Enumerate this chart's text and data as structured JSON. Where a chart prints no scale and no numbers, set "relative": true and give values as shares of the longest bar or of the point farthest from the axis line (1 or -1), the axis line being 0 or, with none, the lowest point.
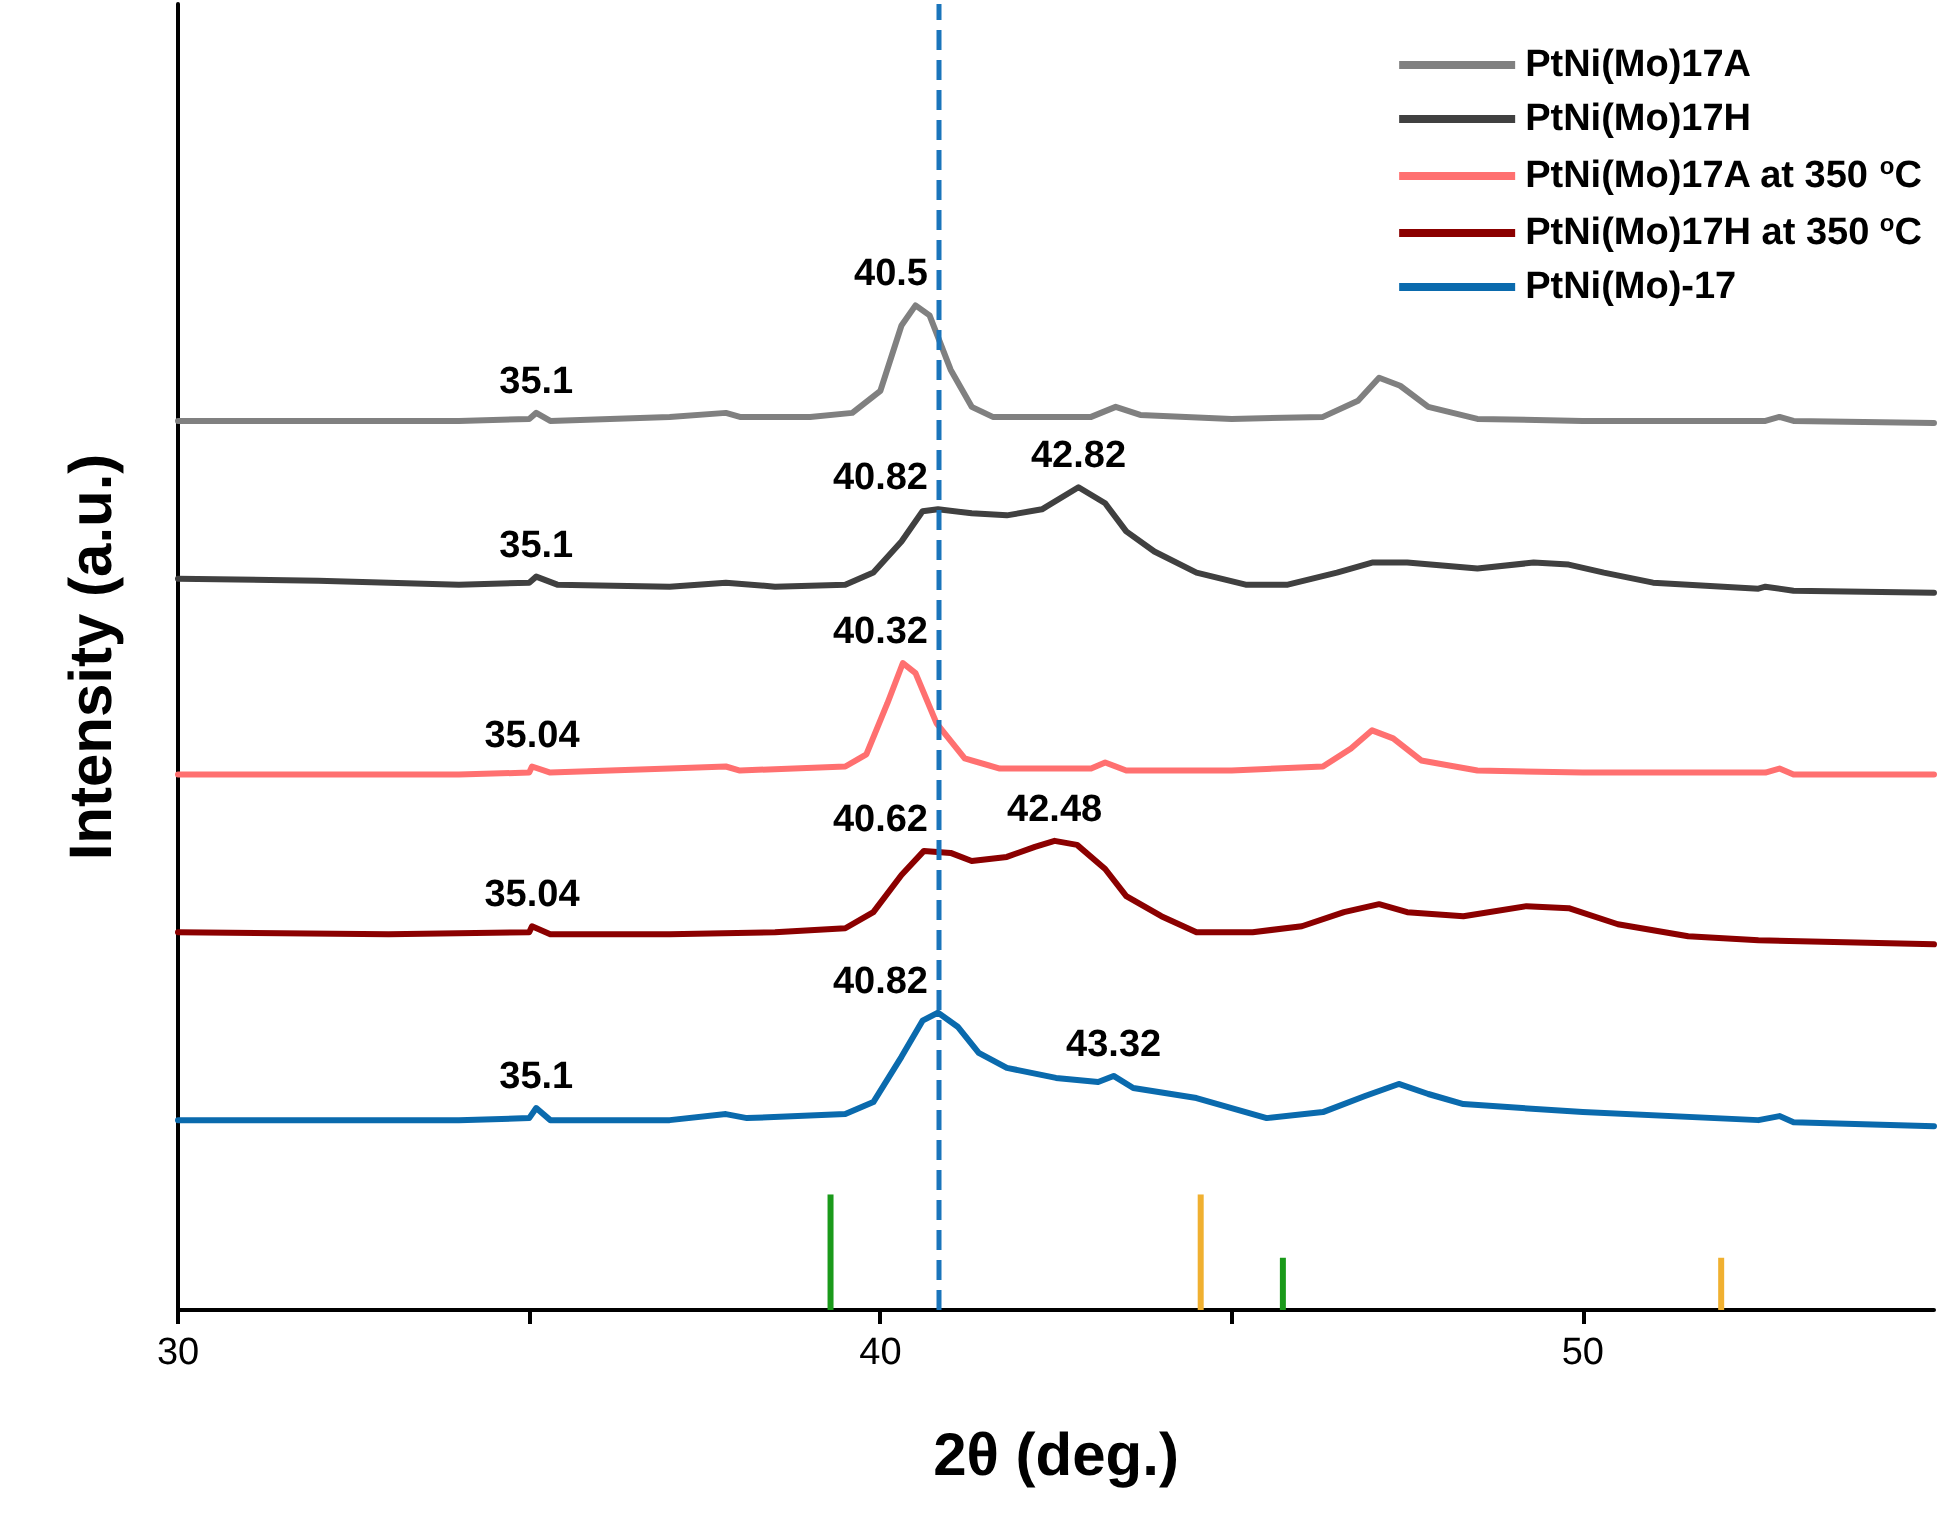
{
  "chart_data": {
    "type": "line",
    "relative": true,
    "xlabel": "2θ (deg.)",
    "ylabel": "Intensity (a.u.)",
    "xlim": [
      30,
      55
    ],
    "xticks": [
      30,
      {
        "value": 35,
        "label": null
      },
      40,
      {
        "value": 45,
        "label": null
      },
      50
    ],
    "legend": "top right",
    "grid": false,
    "marker": "none",
    "line_style": "solid",
    "series": [
      {
        "name": "PtNi(Mo)17A",
        "color": "#808080",
        "x": [
          30,
          34,
          35.0,
          35.1,
          35.3,
          37,
          37.8,
          38,
          39,
          39.6,
          40.0,
          40.3,
          40.5,
          40.7,
          41.0,
          41.3,
          41.6,
          43,
          43.35,
          43.7,
          45,
          46.3,
          46.8,
          47.1,
          47.4,
          47.8,
          48.5,
          50,
          52.6,
          52.8,
          53,
          55
        ],
        "values": [
          0.885,
          0.885,
          0.887,
          0.893,
          0.885,
          0.889,
          0.893,
          0.889,
          0.889,
          0.893,
          0.915,
          0.98,
          1.0,
          0.99,
          0.936,
          0.899,
          0.889,
          0.889,
          0.899,
          0.891,
          0.887,
          0.889,
          0.905,
          0.928,
          0.92,
          0.899,
          0.887,
          0.885,
          0.885,
          0.889,
          0.885,
          0.883
        ]
      },
      {
        "name": "PtNi(Mo)17H",
        "color": "#404040",
        "x": [
          30,
          32,
          34,
          35.0,
          35.1,
          35.4,
          37,
          37.8,
          38.5,
          39.5,
          39.9,
          40.3,
          40.6,
          40.82,
          41.3,
          41.8,
          42.3,
          42.82,
          43.2,
          43.5,
          43.9,
          44.5,
          45.2,
          45.8,
          46.5,
          47.0,
          47.5,
          48.5,
          49.3,
          49.8,
          50.3,
          51,
          52.5,
          52.6,
          53,
          55
        ],
        "values": [
          0.728,
          0.726,
          0.722,
          0.724,
          0.73,
          0.722,
          0.72,
          0.724,
          0.72,
          0.722,
          0.734,
          0.765,
          0.795,
          0.797,
          0.793,
          0.791,
          0.797,
          0.819,
          0.803,
          0.775,
          0.755,
          0.734,
          0.722,
          0.722,
          0.734,
          0.744,
          0.744,
          0.738,
          0.744,
          0.742,
          0.734,
          0.724,
          0.718,
          0.72,
          0.716,
          0.714
        ]
      },
      {
        "name": "PtNi(Mo)17A at 350 $^{o}$C",
        "color": "#ff7070",
        "x": [
          30,
          34,
          35.0,
          35.04,
          35.3,
          37,
          37.8,
          38,
          39.5,
          39.8,
          40.1,
          40.32,
          40.5,
          40.8,
          41.2,
          41.7,
          43,
          43.2,
          43.5,
          45,
          46.3,
          46.7,
          47.0,
          47.3,
          47.7,
          48.5,
          50,
          52.6,
          52.8,
          53,
          55
        ],
        "values": [
          0.533,
          0.533,
          0.535,
          0.541,
          0.535,
          0.539,
          0.541,
          0.537,
          0.541,
          0.553,
          0.604,
          0.644,
          0.634,
          0.584,
          0.549,
          0.539,
          0.539,
          0.545,
          0.537,
          0.537,
          0.541,
          0.559,
          0.577,
          0.569,
          0.547,
          0.537,
          0.535,
          0.535,
          0.539,
          0.533,
          0.533
        ]
      },
      {
        "name": "PtNi(Mo)17H at 350 $^{o}$C",
        "color": "#8b0000",
        "x": [
          30,
          33,
          35.0,
          35.04,
          35.3,
          37,
          38.5,
          39.5,
          39.9,
          40.3,
          40.62,
          41.0,
          41.3,
          41.8,
          42.2,
          42.48,
          42.8,
          43.2,
          43.5,
          44,
          44.5,
          45.3,
          46,
          46.6,
          47.1,
          47.5,
          48.3,
          49.2,
          49.8,
          50.5,
          51.5,
          52.5,
          55
        ],
        "values": [
          0.376,
          0.374,
          0.376,
          0.382,
          0.374,
          0.374,
          0.376,
          0.38,
          0.396,
          0.433,
          0.457,
          0.455,
          0.447,
          0.451,
          0.461,
          0.467,
          0.463,
          0.439,
          0.412,
          0.392,
          0.376,
          0.376,
          0.382,
          0.396,
          0.404,
          0.396,
          0.392,
          0.402,
          0.4,
          0.384,
          0.372,
          0.368,
          0.364
        ]
      },
      {
        "name": "PtNi(Mo)-17",
        "color": "#0a6aad",
        "x": [
          30,
          34,
          35.0,
          35.1,
          35.3,
          37,
          37.8,
          38.1,
          39.5,
          39.9,
          40.3,
          40.6,
          40.82,
          41.1,
          41.4,
          41.8,
          42.5,
          43.1,
          43.32,
          43.6,
          44.5,
          45.5,
          46.3,
          46.9,
          47.38,
          47.8,
          48.3,
          50,
          52.5,
          52.8,
          53,
          55
        ],
        "values": [
          0.189,
          0.189,
          0.191,
          0.201,
          0.189,
          0.189,
          0.195,
          0.191,
          0.195,
          0.207,
          0.252,
          0.288,
          0.296,
          0.282,
          0.256,
          0.241,
          0.231,
          0.227,
          0.233,
          0.221,
          0.211,
          0.191,
          0.197,
          0.213,
          0.225,
          0.215,
          0.205,
          0.197,
          0.189,
          0.193,
          0.187,
          0.183
        ]
      },
      {
        "type": "bar",
        "color": "#1a9a1a",
        "x": [
          39.29,
          45.73
        ],
        "values": [
          0.115,
          0.052
        ]
      },
      {
        "type": "bar",
        "color": "#f0b030",
        "x": [
          44.56,
          51.97
        ],
        "values": [
          0.115,
          0.052
        ]
      }
    ],
    "ref_lines": [
      {
        "axis": "x",
        "value": 40.82,
        "color": "#1a75bb",
        "line_style": "dashed"
      }
    ],
    "annotations": [
      {
        "text": "40.5",
        "x": 40.5,
        "y": 1.0
      },
      {
        "text": "35.1",
        "x": 35.1,
        "y": 0.893
      },
      {
        "text": "40.82",
        "x": 40.82,
        "y": 0.797
      },
      {
        "text": "42.82",
        "x": 42.82,
        "y": 0.819
      },
      {
        "text": "35.1",
        "x": 35.1,
        "y": 0.73
      },
      {
        "text": "40.32",
        "x": 40.32,
        "y": 0.644
      },
      {
        "text": "35.04",
        "x": 35.04,
        "y": 0.541
      },
      {
        "text": "40.62",
        "x": 40.62,
        "y": 0.457
      },
      {
        "text": "42.48",
        "x": 42.48,
        "y": 0.467
      },
      {
        "text": "35.04",
        "x": 35.04,
        "y": 0.382
      },
      {
        "text": "40.82",
        "x": 40.82,
        "y": 0.296
      },
      {
        "text": "43.32",
        "x": 43.32,
        "y": 0.233
      },
      {
        "text": "35.1",
        "x": 35.1,
        "y": 0.201
      }
    ]
  }
}
